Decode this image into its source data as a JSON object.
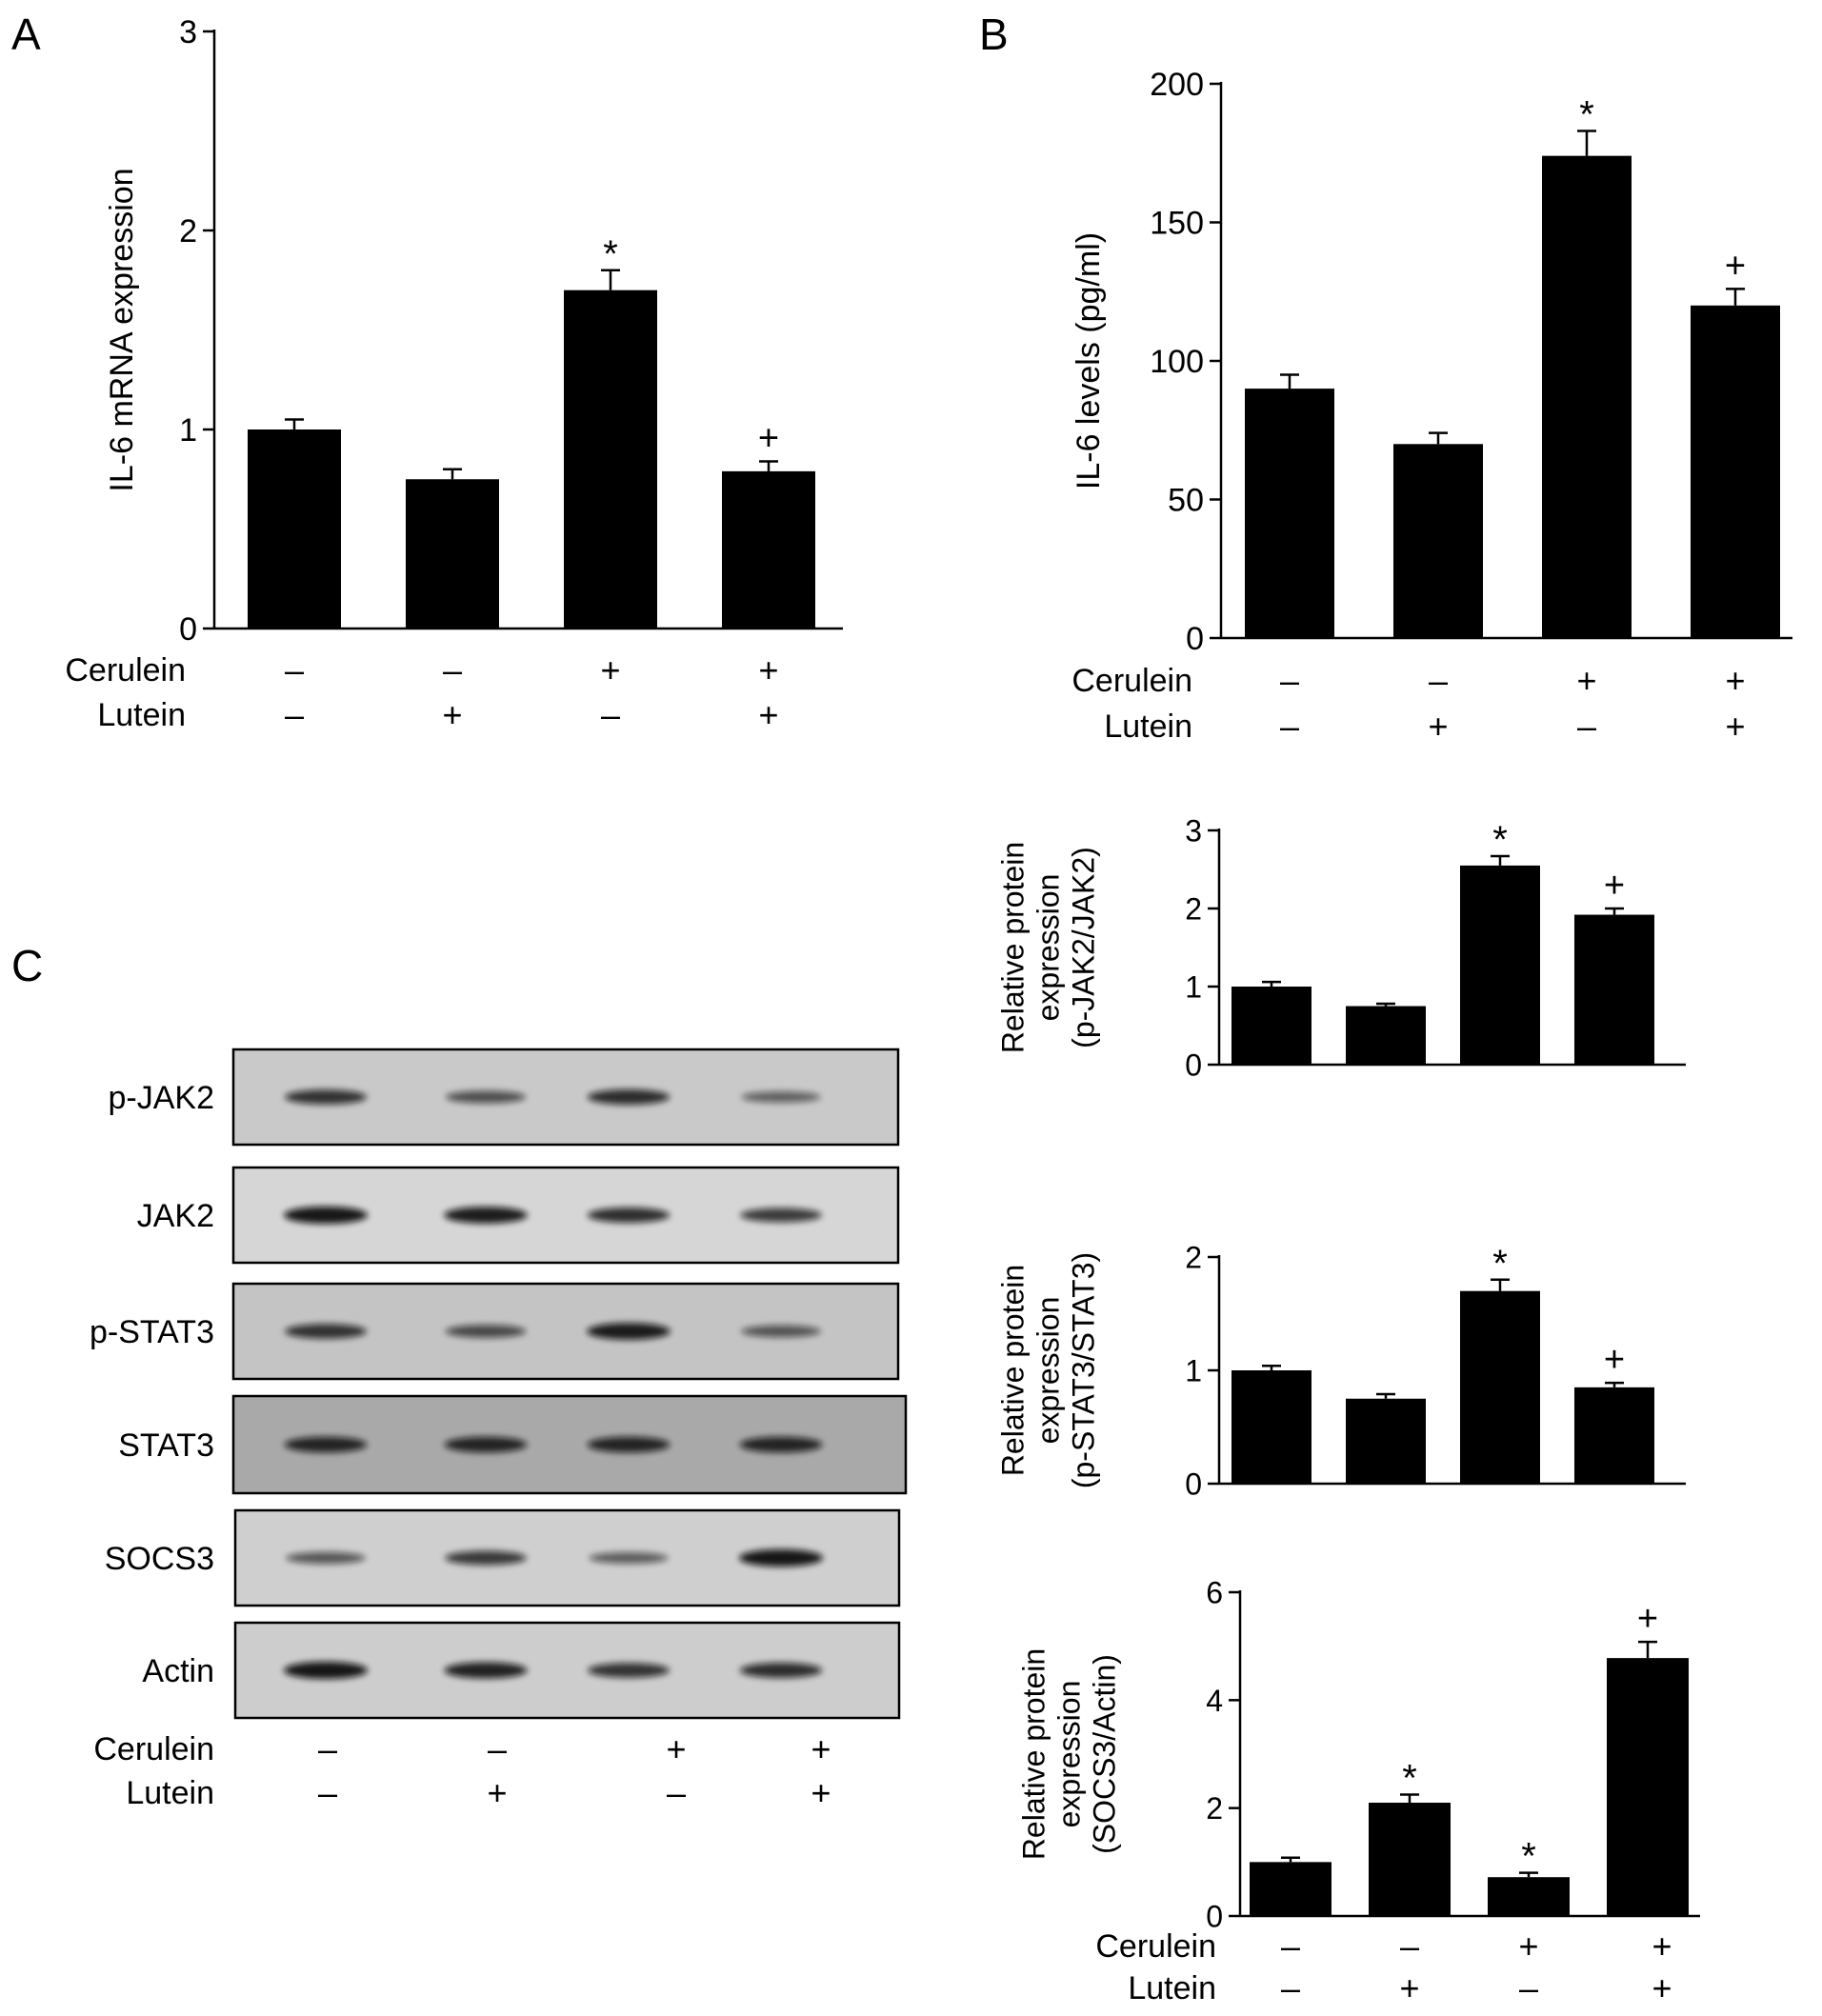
{
  "panel_labels": {
    "a": "A",
    "b": "B",
    "c": "C"
  },
  "row_labels": {
    "cerulein": "Cerulein",
    "lutein": "Lutein"
  },
  "treatment_signs": {
    "cerulein": [
      "–",
      "–",
      "+",
      "+"
    ],
    "lutein": [
      "–",
      "+",
      "–",
      "+"
    ]
  },
  "blot": {
    "lanes": 4,
    "strips": [
      {
        "label": "p-JAK2",
        "intensity": [
          0.75,
          0.5,
          0.8,
          0.35
        ]
      },
      {
        "label": "JAK2",
        "intensity": [
          1.0,
          0.95,
          0.8,
          0.7
        ]
      },
      {
        "label": "p-STAT3",
        "intensity": [
          0.75,
          0.55,
          0.95,
          0.45
        ]
      },
      {
        "label": "STAT3",
        "intensity": [
          0.85,
          0.85,
          0.85,
          0.85
        ]
      },
      {
        "label": "SOCS3",
        "intensity": [
          0.45,
          0.7,
          0.4,
          1.0
        ]
      },
      {
        "label": "Actin",
        "intensity": [
          1.0,
          0.9,
          0.75,
          0.8
        ]
      }
    ]
  },
  "chart_data": [
    {
      "id": "A",
      "type": "bar",
      "ylabel": "IL-6 mRNA expression",
      "ylim": [
        0,
        3
      ],
      "yticks": [
        "0",
        "1",
        "2",
        "3"
      ],
      "values": [
        1.0,
        0.75,
        1.7,
        0.79
      ],
      "errors": [
        0.05,
        0.05,
        0.1,
        0.05
      ],
      "annotations": [
        "",
        "",
        "*",
        "+"
      ]
    },
    {
      "id": "B",
      "type": "bar",
      "ylabel": "IL-6 levels (pg/ml)",
      "ylim": [
        0,
        200
      ],
      "yticks": [
        "0",
        "50",
        "100",
        "150",
        "200"
      ],
      "values": [
        90,
        70,
        174,
        120
      ],
      "errors": [
        5,
        4,
        9,
        6
      ],
      "annotations": [
        "",
        "",
        "*",
        "+"
      ]
    },
    {
      "id": "C-pJAK2",
      "type": "bar",
      "ylabel": [
        "Relative protein",
        "expression",
        "(p-JAK2/JAK2)"
      ],
      "ylim": [
        0,
        3
      ],
      "yticks": [
        "0",
        "1",
        "2",
        "3"
      ],
      "values": [
        1.0,
        0.75,
        2.55,
        1.92
      ],
      "errors": [
        0.06,
        0.03,
        0.12,
        0.08
      ],
      "annotations": [
        "",
        "",
        "*",
        "+"
      ]
    },
    {
      "id": "C-pSTAT3",
      "type": "bar",
      "ylabel": [
        "Relative protein",
        "expression",
        "(p-STAT3/STAT3)"
      ],
      "ylim": [
        0,
        2
      ],
      "yticks": [
        "0",
        "1",
        "2"
      ],
      "values": [
        1.0,
        0.75,
        1.7,
        0.85
      ],
      "errors": [
        0.04,
        0.04,
        0.1,
        0.04
      ],
      "annotations": [
        "",
        "",
        "*",
        "+"
      ]
    },
    {
      "id": "C-SOCS3",
      "type": "bar",
      "ylabel": [
        "Relative protein",
        "expression",
        "(SOCS3/Actin)"
      ],
      "ylim": [
        0,
        6
      ],
      "yticks": [
        "0",
        "2",
        "4",
        "6"
      ],
      "values": [
        1.0,
        2.1,
        0.72,
        4.78
      ],
      "errors": [
        0.08,
        0.15,
        0.08,
        0.3
      ],
      "annotations": [
        "",
        "*",
        "*",
        "+"
      ]
    }
  ]
}
